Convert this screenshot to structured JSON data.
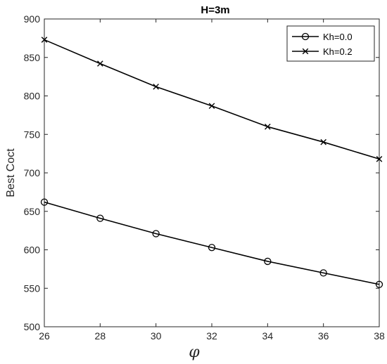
{
  "chart_data": {
    "type": "line",
    "title": "H=3m",
    "xlabel": "φ",
    "ylabel": "Best Coct",
    "x": [
      26,
      28,
      30,
      32,
      34,
      36,
      38
    ],
    "xlim": [
      26,
      38
    ],
    "ylim": [
      500,
      900
    ],
    "xticks": [
      "26",
      "28",
      "30",
      "32",
      "34",
      "36",
      "38"
    ],
    "yticks": [
      "500",
      "550",
      "600",
      "650",
      "700",
      "750",
      "800",
      "850",
      "900"
    ],
    "grid": false,
    "legend_position": "top-right",
    "series": [
      {
        "name": "Kh=0.0",
        "marker": "circle",
        "color": "#000000",
        "values": [
          662,
          641,
          621,
          603,
          585,
          570,
          555
        ]
      },
      {
        "name": "Kh=0.2",
        "marker": "x",
        "color": "#000000",
        "values": [
          873,
          842,
          812,
          787,
          760,
          740,
          718
        ]
      }
    ]
  }
}
